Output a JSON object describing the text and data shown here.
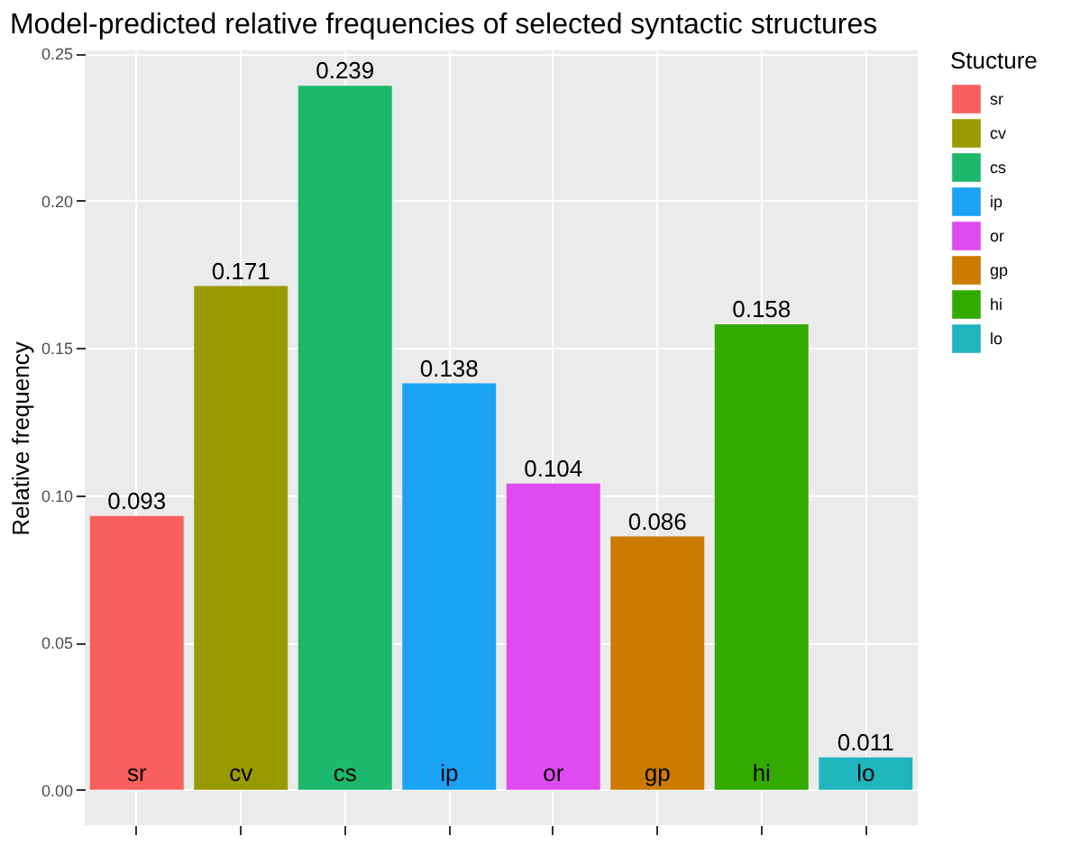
{
  "chart_data": {
    "type": "bar",
    "title": "Model-predicted relative frequencies of selected syntactic structures",
    "ylabel": "Relative frequency",
    "legend_title": "Stucture",
    "categories": [
      null,
      null,
      null,
      null,
      null,
      null,
      null,
      null
    ],
    "series": [
      {
        "name": "sr",
        "color": "#f8605e",
        "values": [
          0.093,
          null,
          null,
          null,
          null,
          null,
          null,
          null
        ]
      },
      {
        "name": "cv",
        "color": "#999a00",
        "values": [
          null,
          0.171,
          null,
          null,
          null,
          null,
          null,
          null
        ]
      },
      {
        "name": "cs",
        "color": "#1cb86b",
        "values": [
          null,
          null,
          0.239,
          null,
          null,
          null,
          null,
          null
        ]
      },
      {
        "name": "ip",
        "color": "#1aa3f5",
        "values": [
          null,
          null,
          null,
          0.138,
          null,
          null,
          null,
          null
        ]
      },
      {
        "name": "or",
        "color": "#e04bf0",
        "values": [
          null,
          null,
          null,
          null,
          0.104,
          null,
          null,
          null
        ]
      },
      {
        "name": "gp",
        "color": "#cc7a00",
        "values": [
          null,
          null,
          null,
          null,
          null,
          0.086,
          null,
          null
        ]
      },
      {
        "name": "hi",
        "color": "#33aa00",
        "values": [
          null,
          null,
          null,
          null,
          null,
          null,
          0.158,
          null
        ]
      },
      {
        "name": "lo",
        "color": "#1fb5bf",
        "values": [
          null,
          null,
          null,
          null,
          null,
          null,
          null,
          0.011
        ]
      }
    ],
    "ylim": [
      -0.012,
      0.251
    ],
    "yticks": [
      {
        "value": 0,
        "label": "0.00"
      },
      {
        "value": 0.05,
        "label": "0.05"
      },
      {
        "value": 0.1,
        "label": "0.10"
      },
      {
        "value": 0.15,
        "label": "0.15"
      },
      {
        "value": 0.2,
        "label": "0.20"
      },
      {
        "value": 0.25,
        "label": "0.25"
      }
    ],
    "grid": true,
    "legend": "right",
    "data_labels": true,
    "tick_labels": "y"
  }
}
